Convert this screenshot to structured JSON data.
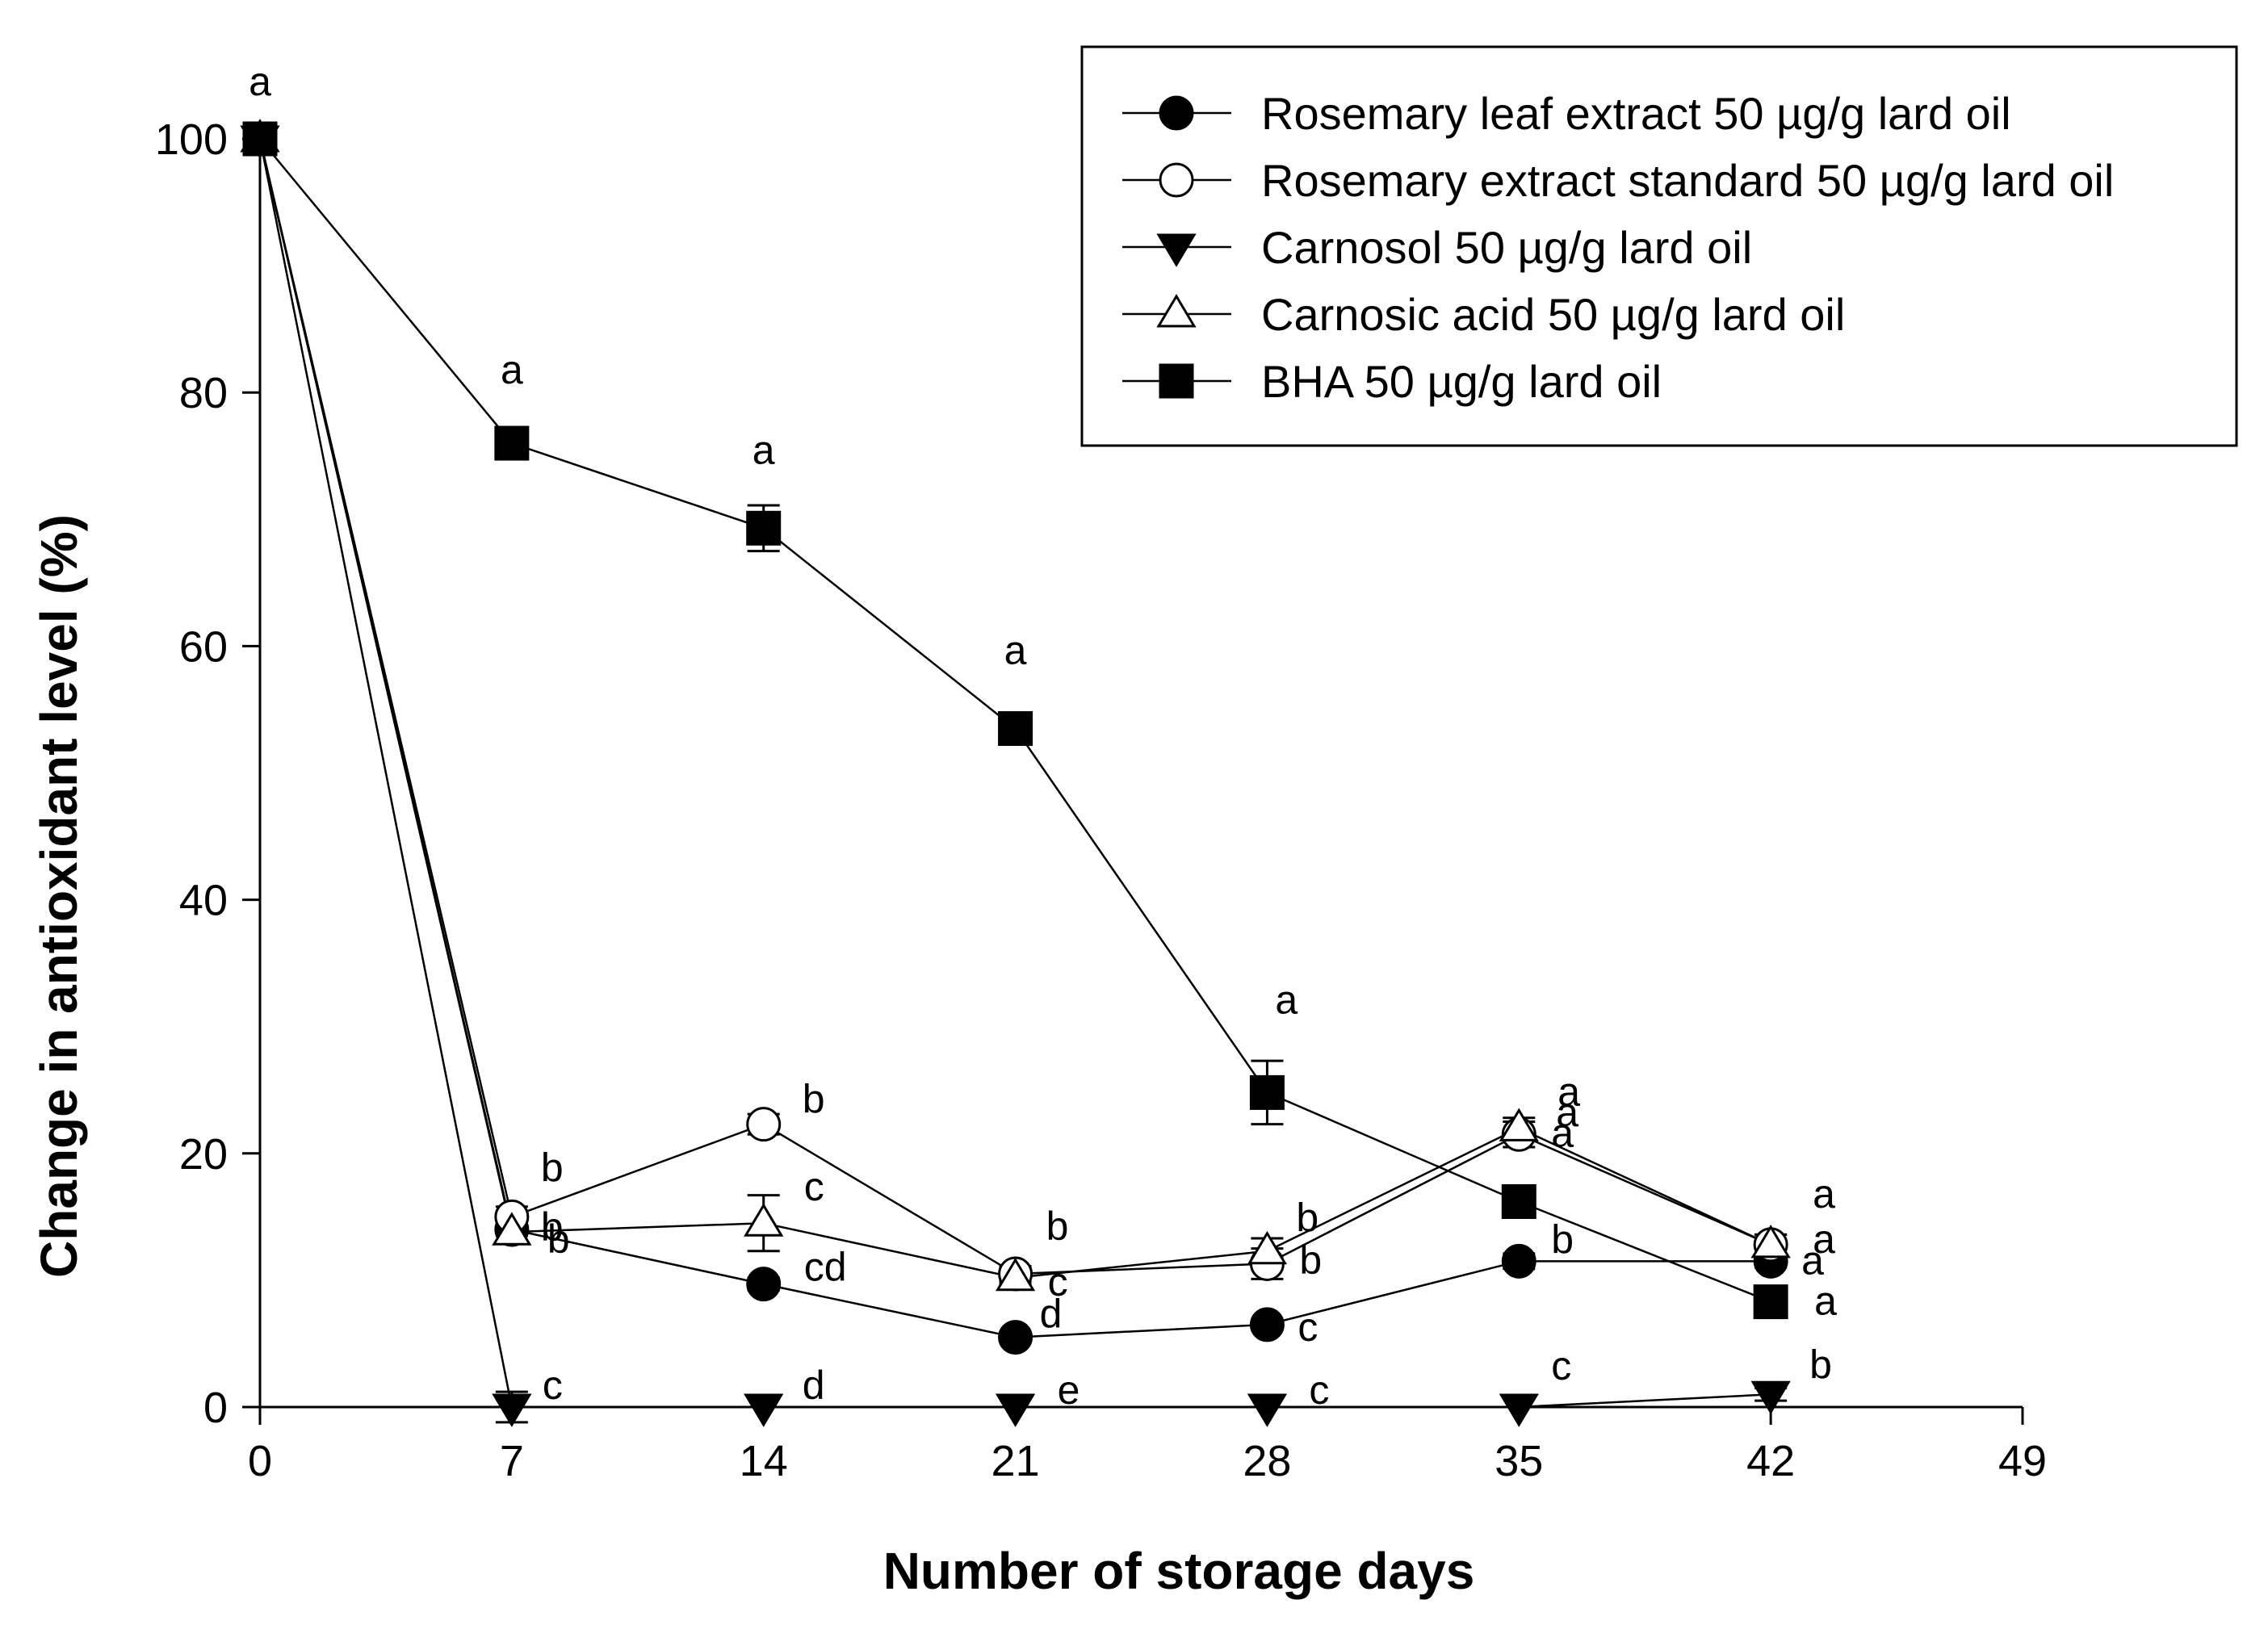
{
  "chart_data": {
    "type": "line",
    "title": "",
    "xlabel": "Number of storage days",
    "ylabel": "Change in antioxidant level (%)",
    "xlim": [
      0,
      49
    ],
    "ylim": [
      0,
      100
    ],
    "x_ticks": [
      0,
      7,
      14,
      21,
      28,
      35,
      42,
      49
    ],
    "y_ticks": [
      0,
      20,
      40,
      60,
      80,
      100
    ],
    "legend_position": "top-right",
    "x": [
      0,
      7,
      14,
      21,
      28,
      35,
      42
    ],
    "series": [
      {
        "name": "Rosemary leaf extract 50 µg/g lard oil",
        "marker": "filled-circle",
        "values": [
          100,
          14,
          9.7,
          5.5,
          6.5,
          11.5,
          11.5
        ],
        "errors": [
          0,
          0.5,
          0.5,
          0.3,
          0.4,
          0.6,
          0.5
        ],
        "letters": [
          "",
          "b",
          "cd",
          "d",
          "c",
          "b",
          "a"
        ],
        "letter_offsets": [
          [
            0,
            0
          ],
          [
            36,
            -2
          ],
          [
            50,
            -20
          ],
          [
            30,
            -28
          ],
          [
            38,
            4
          ],
          [
            40,
            -26
          ],
          [
            38,
            0
          ]
        ]
      },
      {
        "name": "Rosemary extract standard 50 µg/g lard oil",
        "marker": "open-circle",
        "values": [
          100,
          15,
          22.3,
          10.5,
          11.3,
          21.5,
          12.8
        ],
        "errors": [
          0,
          0.8,
          0.8,
          0.6,
          1.2,
          1.0,
          0.8
        ],
        "letters": [
          "a",
          "b",
          "b",
          "b",
          "b",
          "a",
          "a"
        ],
        "letter_offsets": [
          [
            0,
            -70
          ],
          [
            36,
            -60
          ],
          [
            48,
            -30
          ],
          [
            38,
            -58
          ],
          [
            36,
            -56
          ],
          [
            46,
            -26
          ],
          [
            52,
            -62
          ]
        ]
      },
      {
        "name": "Carnosol 50 µg/g lard oil",
        "marker": "filled-triangle-down",
        "values": [
          100,
          0,
          0,
          0,
          0,
          0,
          1
        ],
        "errors": [
          0,
          1.2,
          0,
          0,
          0,
          0,
          0.5
        ],
        "letters": [
          "",
          "c",
          "d",
          "e",
          "c",
          "c",
          "b"
        ],
        "letter_offsets": [
          [
            0,
            0
          ],
          [
            38,
            -26
          ],
          [
            48,
            -26
          ],
          [
            52,
            -20
          ],
          [
            52,
            -20
          ],
          [
            40,
            -50
          ],
          [
            48,
            -36
          ]
        ]
      },
      {
        "name": "Carnosic acid 50 µg/g lard oil",
        "marker": "open-triangle-up",
        "values": [
          100,
          13.8,
          14.5,
          10.2,
          12.3,
          22,
          12.8
        ],
        "errors": [
          0,
          0.8,
          2.2,
          0.5,
          1.0,
          0.8,
          0.8
        ],
        "letters": [
          "",
          "b",
          "c",
          "c",
          "b",
          "a",
          "a"
        ],
        "letter_offsets": [
          [
            0,
            0
          ],
          [
            44,
            10
          ],
          [
            50,
            -44
          ],
          [
            40,
            6
          ],
          [
            40,
            12
          ],
          [
            48,
            -44
          ],
          [
            52,
            -6
          ]
        ]
      },
      {
        "name": "BHA 50 µg/g lard oil",
        "marker": "filled-square",
        "values": [
          100,
          76,
          69.3,
          53.5,
          24.8,
          16.2,
          8.3
        ],
        "errors": [
          0,
          0.8,
          1.8,
          0.8,
          2.5,
          0.6,
          0.6
        ],
        "letters": [
          "",
          "a",
          "a",
          "a",
          "a",
          "a",
          "a"
        ],
        "letter_offsets": [
          [
            0,
            0
          ],
          [
            0,
            -90
          ],
          [
            0,
            -96
          ],
          [
            0,
            -96
          ],
          [
            10,
            -114
          ],
          [
            40,
            -84
          ],
          [
            54,
            0
          ]
        ]
      }
    ]
  }
}
